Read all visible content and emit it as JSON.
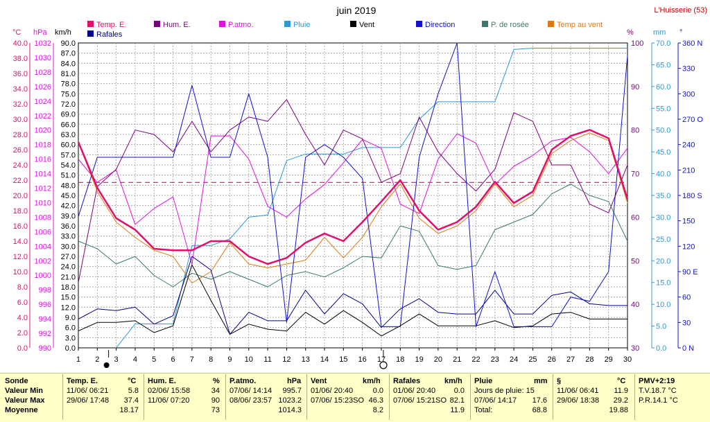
{
  "header": {
    "title": "juin 2019",
    "station": "L'Huisserie (53)"
  },
  "unit_labels": {
    "celsius": "°C",
    "hpa": "hPa",
    "kmh": "km/h",
    "percent": "%",
    "mm": "mm",
    "degree": "°"
  },
  "colors": {
    "temp": "#e0106a",
    "hum": "#7b007b",
    "patmo": "#e010e0",
    "pluie": "#2a9ad6",
    "vent": "#000000",
    "direction": "#1010d0",
    "rosee": "#3a7a6a",
    "temp_vent": "#e07a10",
    "rafales": "#00008a"
  },
  "chart_data": {
    "type": "line",
    "title": "juin 2019",
    "x": [
      1,
      2,
      3,
      4,
      5,
      6,
      7,
      8,
      9,
      10,
      11,
      12,
      13,
      14,
      15,
      16,
      17,
      18,
      19,
      20,
      21,
      22,
      23,
      24,
      25,
      26,
      27,
      28,
      29,
      30
    ],
    "xlim": [
      1,
      30
    ],
    "axes": {
      "celsius": {
        "range": [
          0,
          40
        ],
        "ticks": [
          "0.0",
          "2.0",
          "4.0",
          "6.0",
          "8.0",
          "10.0",
          "12.0",
          "14.0",
          "16.0",
          "18.0",
          "20.0",
          "22.0",
          "24.0",
          "26.0",
          "28.0",
          "30.0",
          "32.0",
          "34.0",
          "36.0",
          "38.0",
          "40.0"
        ]
      },
      "hpa": {
        "range": [
          990,
          1032
        ],
        "ticks": [
          "990",
          "992",
          "994",
          "996",
          "998",
          "1000",
          "1002",
          "1004",
          "1006",
          "1008",
          "1010",
          "1012",
          "1014",
          "1016",
          "1018",
          "1020",
          "1022",
          "1024",
          "1026",
          "1028",
          "1030",
          "1032"
        ]
      },
      "kmh": {
        "range": [
          0,
          90
        ],
        "ticks": [
          "0.0",
          "3.0",
          "6.0",
          "9.0",
          "12.0",
          "15.0",
          "18.0",
          "21.0",
          "24.0",
          "27.0",
          "30.0",
          "33.0",
          "36.0",
          "39.0",
          "42.0",
          "45.0",
          "48.0",
          "51.0",
          "54.0",
          "57.0",
          "60.0",
          "63.0",
          "66.0",
          "69.0",
          "72.0",
          "75.0",
          "78.0",
          "81.0",
          "84.0",
          "87.0",
          "90.0"
        ]
      },
      "percent": {
        "range": [
          30,
          100
        ],
        "ticks": [
          "30",
          "40",
          "50",
          "60",
          "70",
          "80",
          "90",
          "100"
        ]
      },
      "mm": {
        "range": [
          0,
          70
        ],
        "ticks": [
          "0.0",
          "5.0",
          "10.0",
          "15.0",
          "20.0",
          "25.0",
          "30.0",
          "35.0",
          "40.0",
          "45.0",
          "50.0",
          "55.0",
          "60.0",
          "65.0",
          "70.0"
        ]
      },
      "degree": {
        "range": [
          0,
          360
        ],
        "ticks": [
          "0",
          "30",
          "60",
          "90",
          "120",
          "150",
          "180",
          "210",
          "240",
          "270",
          "300",
          "330",
          "360"
        ],
        "tick_labels": {
          "0": "0 N",
          "90": "90 E",
          "180": "180 S",
          "270": "270 O",
          "360": "360 N"
        }
      }
    },
    "reference_line": {
      "axis": "celsius",
      "value": 21.7
    },
    "special_days": {
      "new_moon": 3,
      "full_moon": 17
    },
    "series": [
      {
        "name": "Temp. E.",
        "axis": "celsius",
        "color": "#e0106a",
        "width": 2.5,
        "values": [
          27,
          21,
          17,
          15.5,
          13,
          12.8,
          12.8,
          14,
          14,
          12,
          11,
          11.8,
          13.8,
          15,
          14,
          16.5,
          19.2,
          22,
          18,
          15.5,
          16.5,
          18.5,
          21.8,
          19,
          20.5,
          26,
          27.8,
          28.6,
          27.5,
          19.5
        ]
      },
      {
        "name": "Hum. E.",
        "axis": "percent",
        "color": "#7b007b",
        "width": 1,
        "values": [
          45,
          67,
          71,
          80,
          79,
          75,
          82,
          75,
          80,
          83,
          82,
          87,
          79,
          72,
          80,
          78,
          68,
          70,
          83,
          75,
          70,
          66,
          71,
          84,
          82,
          72,
          72,
          63,
          61,
          72
        ]
      },
      {
        "name": "P.atmo.",
        "axis": "hpa",
        "color": "#e010e0",
        "width": 1,
        "values": [
          1016,
          1012.8,
          1014.5,
          1007,
          1009.2,
          1010.8,
          1001.5,
          1019.2,
          1019.2,
          1016,
          1009.5,
          1008,
          1010.5,
          1012.5,
          1015.5,
          1018.7,
          1017.5,
          1009.8,
          1008.5,
          1016,
          1019.5,
          1018.2,
          1012.5,
          1015,
          1016.5,
          1018.5,
          1019,
          1017,
          1014,
          1017.5
        ]
      },
      {
        "name": "Pluie",
        "axis": "mm",
        "color": "#2a9ad6",
        "width": 1,
        "values": [
          null,
          null,
          0,
          5.5,
          5.5,
          5.5,
          23.5,
          23.5,
          25,
          30,
          30.5,
          43,
          44.5,
          44.5,
          44.5,
          46,
          46,
          46,
          52.5,
          56.5,
          56.5,
          56.5,
          56.5,
          68.5,
          68.8,
          68.8,
          68.8,
          68.8,
          68.8,
          68.8
        ]
      },
      {
        "name": "Vent",
        "axis": "kmh",
        "color": "#000000",
        "width": 1,
        "values": [
          5,
          7.5,
          7.5,
          8,
          4.5,
          6.5,
          24.5,
          14,
          4,
          7,
          5.5,
          5,
          10.5,
          7,
          11,
          7.5,
          3.5,
          6.5,
          10,
          6.5,
          6.5,
          6.5,
          8,
          6,
          6.5,
          10,
          10.5,
          8.5,
          8.5,
          8.5
        ]
      },
      {
        "name": "Direction",
        "axis": "degree",
        "color": "#1010d0",
        "width": 1,
        "values": [
          155,
          225,
          225,
          225,
          225,
          225,
          310,
          225,
          225,
          300,
          225,
          30,
          225,
          240,
          225,
          200,
          25,
          25,
          225,
          300,
          360,
          25,
          90,
          25,
          25,
          25,
          60,
          55,
          90,
          345
        ]
      },
      {
        "name": "P. de rosée",
        "axis": "celsius",
        "color": "#3a7a6a",
        "width": 1,
        "values": [
          14,
          13,
          11,
          12,
          9.5,
          8,
          9.8,
          9,
          10,
          9,
          8,
          9.5,
          10,
          9.3,
          10.5,
          12,
          11.8,
          16,
          15.3,
          10.8,
          10.3,
          10.8,
          15.5,
          16.5,
          17.5,
          20.2,
          21.5,
          20,
          19.2,
          14
        ]
      },
      {
        "name": "Temp au vent",
        "axis": "celsius",
        "color": "#e07a10",
        "width": 1,
        "values": [
          27,
          20.5,
          16.5,
          14.5,
          12.8,
          12,
          8.5,
          10,
          13.8,
          11,
          10.5,
          11,
          11.5,
          14.5,
          11.8,
          14.5,
          18.5,
          21.5,
          17,
          15,
          16,
          18,
          21.5,
          18.5,
          20,
          25.5,
          27.2,
          28.2,
          27.2,
          19
        ]
      },
      {
        "name": "Rafales",
        "axis": "kmh",
        "color": "#00008a",
        "width": 1,
        "values": [
          8.5,
          11.5,
          11,
          12,
          7,
          9.5,
          27,
          23,
          4,
          10.5,
          8,
          8,
          17,
          10,
          16,
          13,
          6,
          11.5,
          14.5,
          10.5,
          10,
          10,
          17,
          10,
          10,
          15.5,
          16.5,
          13,
          12.5,
          12.5
        ]
      }
    ]
  },
  "footer": {
    "labels": {
      "sonde": "Sonde",
      "min": "Valeur Min",
      "max": "Valeur Max",
      "moy": "Moyenne"
    },
    "temp": {
      "title": "Temp. E.",
      "unit": "°C",
      "min_date": "11/06/  06:21",
      "min_val": "5.8",
      "max_date": "29/06/  17:48",
      "max_val": "37.4",
      "moy": "18.17"
    },
    "hum": {
      "title": "Hum. E.",
      "unit": "%",
      "min_date": "02/06/  15:58",
      "min_val": "34",
      "max_date": "11/06/  07:20",
      "max_val": "90",
      "moy": "73"
    },
    "patmo": {
      "title": "P.atmo.",
      "unit": "hPa",
      "min_date": "07/06/  14:14",
      "min_val": "995.7",
      "max_date": "08/06/  23:57",
      "max_val": "1023.2",
      "moy": "1014.3"
    },
    "vent": {
      "title": "Vent",
      "unit": "km/h",
      "min_date": "01/06/  20:40",
      "min_val": "0.0",
      "max_date": "07/06/  15:23SO",
      "max_val": "46.3",
      "moy": "8.2"
    },
    "rafales": {
      "title": "Rafales",
      "unit": "km/h",
      "min_date": "01/06/  20:40",
      "min_val": "0.0",
      "max_date": "07/06/  15:21SO",
      "max_val": "82.1",
      "moy": "11.9"
    },
    "pluie": {
      "title": "Pluie",
      "unit": "mm",
      "line1_label": "Jours de pluie: 15",
      "line2_label": "07/06/  14:17",
      "line2_val": "17.6",
      "line3_label": "Total:",
      "line3_val": "68.8"
    },
    "s": {
      "title": "§",
      "unit": "°C",
      "min_date": "11/06/  06:41",
      "min_val": "11.9",
      "max_date": "29/06/  18:38",
      "max_val": "29.2",
      "moy": "19.88"
    },
    "pmv": {
      "title": "PMV+2:19",
      "line1": "T.V.18.7 °C",
      "line2": "P.R.14.1 °C"
    }
  }
}
